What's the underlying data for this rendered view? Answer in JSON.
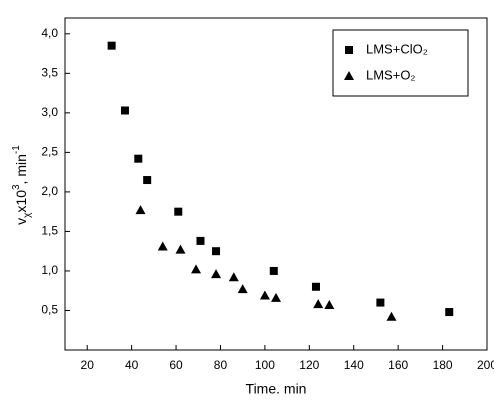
{
  "chart_data": {
    "type": "scatter",
    "xlabel": "Time. min",
    "ylabel": [
      "v",
      "χ",
      "x10",
      "3",
      ", min",
      "-1"
    ],
    "xlim": [
      10,
      200
    ],
    "ylim": [
      0,
      4.2
    ],
    "xticks": [
      20,
      40,
      60,
      80,
      100,
      120,
      140,
      160,
      180,
      200
    ],
    "yticks": [
      {
        "value": 0.5,
        "label": "0,5"
      },
      {
        "value": 1.0,
        "label": "1,0"
      },
      {
        "value": 1.5,
        "label": "1,5"
      },
      {
        "value": 2.0,
        "label": "2,0"
      },
      {
        "value": 2.5,
        "label": "2,5"
      },
      {
        "value": 3.0,
        "label": "3,0"
      },
      {
        "value": 3.5,
        "label": "3,5"
      },
      {
        "value": 4.0,
        "label": "4,0"
      }
    ],
    "legend": "upper right",
    "series": [
      {
        "name": "LMS+ClO₂",
        "marker": "square",
        "color": "#000000",
        "x": [
          31,
          37,
          43,
          47,
          61,
          71,
          78,
          104,
          123,
          152,
          183
        ],
        "values": [
          3.85,
          3.03,
          2.42,
          2.15,
          1.75,
          1.38,
          1.25,
          1.0,
          0.8,
          0.6,
          0.48
        ]
      },
      {
        "name": "LMS+O₂",
        "marker": "triangle",
        "color": "#000000",
        "x": [
          44,
          54,
          62,
          69,
          78,
          86,
          90,
          100,
          105,
          124,
          129,
          157
        ],
        "values": [
          1.77,
          1.31,
          1.27,
          1.02,
          0.96,
          0.92,
          0.77,
          0.69,
          0.66,
          0.58,
          0.57,
          0.42
        ]
      }
    ]
  }
}
